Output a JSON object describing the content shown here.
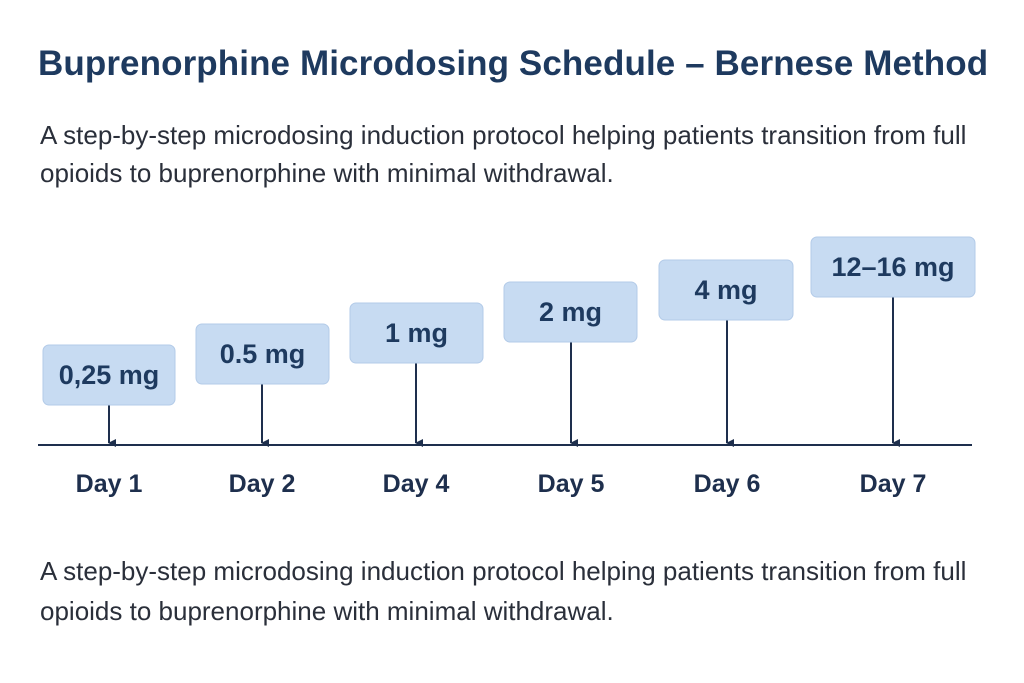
{
  "header": {
    "title": "Buprenorphine Microdosing Schedule – Bernese Method",
    "subtitle": "A step-by-step microdosing induction protocol helping patients transition from full opioids to buprenorphine with minimal withdrawal."
  },
  "timeline": {
    "steps": [
      {
        "day": "Day 1",
        "dose": "0,25 mg"
      },
      {
        "day": "Day 2",
        "dose": "0.5 mg"
      },
      {
        "day": "Day 4",
        "dose": "1 mg"
      },
      {
        "day": "Day 5",
        "dose": "2 mg"
      },
      {
        "day": "Day 6",
        "dose": "4 mg"
      },
      {
        "day": "Day 7",
        "dose": "12–16 mg"
      }
    ]
  },
  "footer": {
    "caption": "A step-by-step microdosing induction protocol helping patients transition from full opioids to buprenorphine with minimal withdrawal."
  }
}
